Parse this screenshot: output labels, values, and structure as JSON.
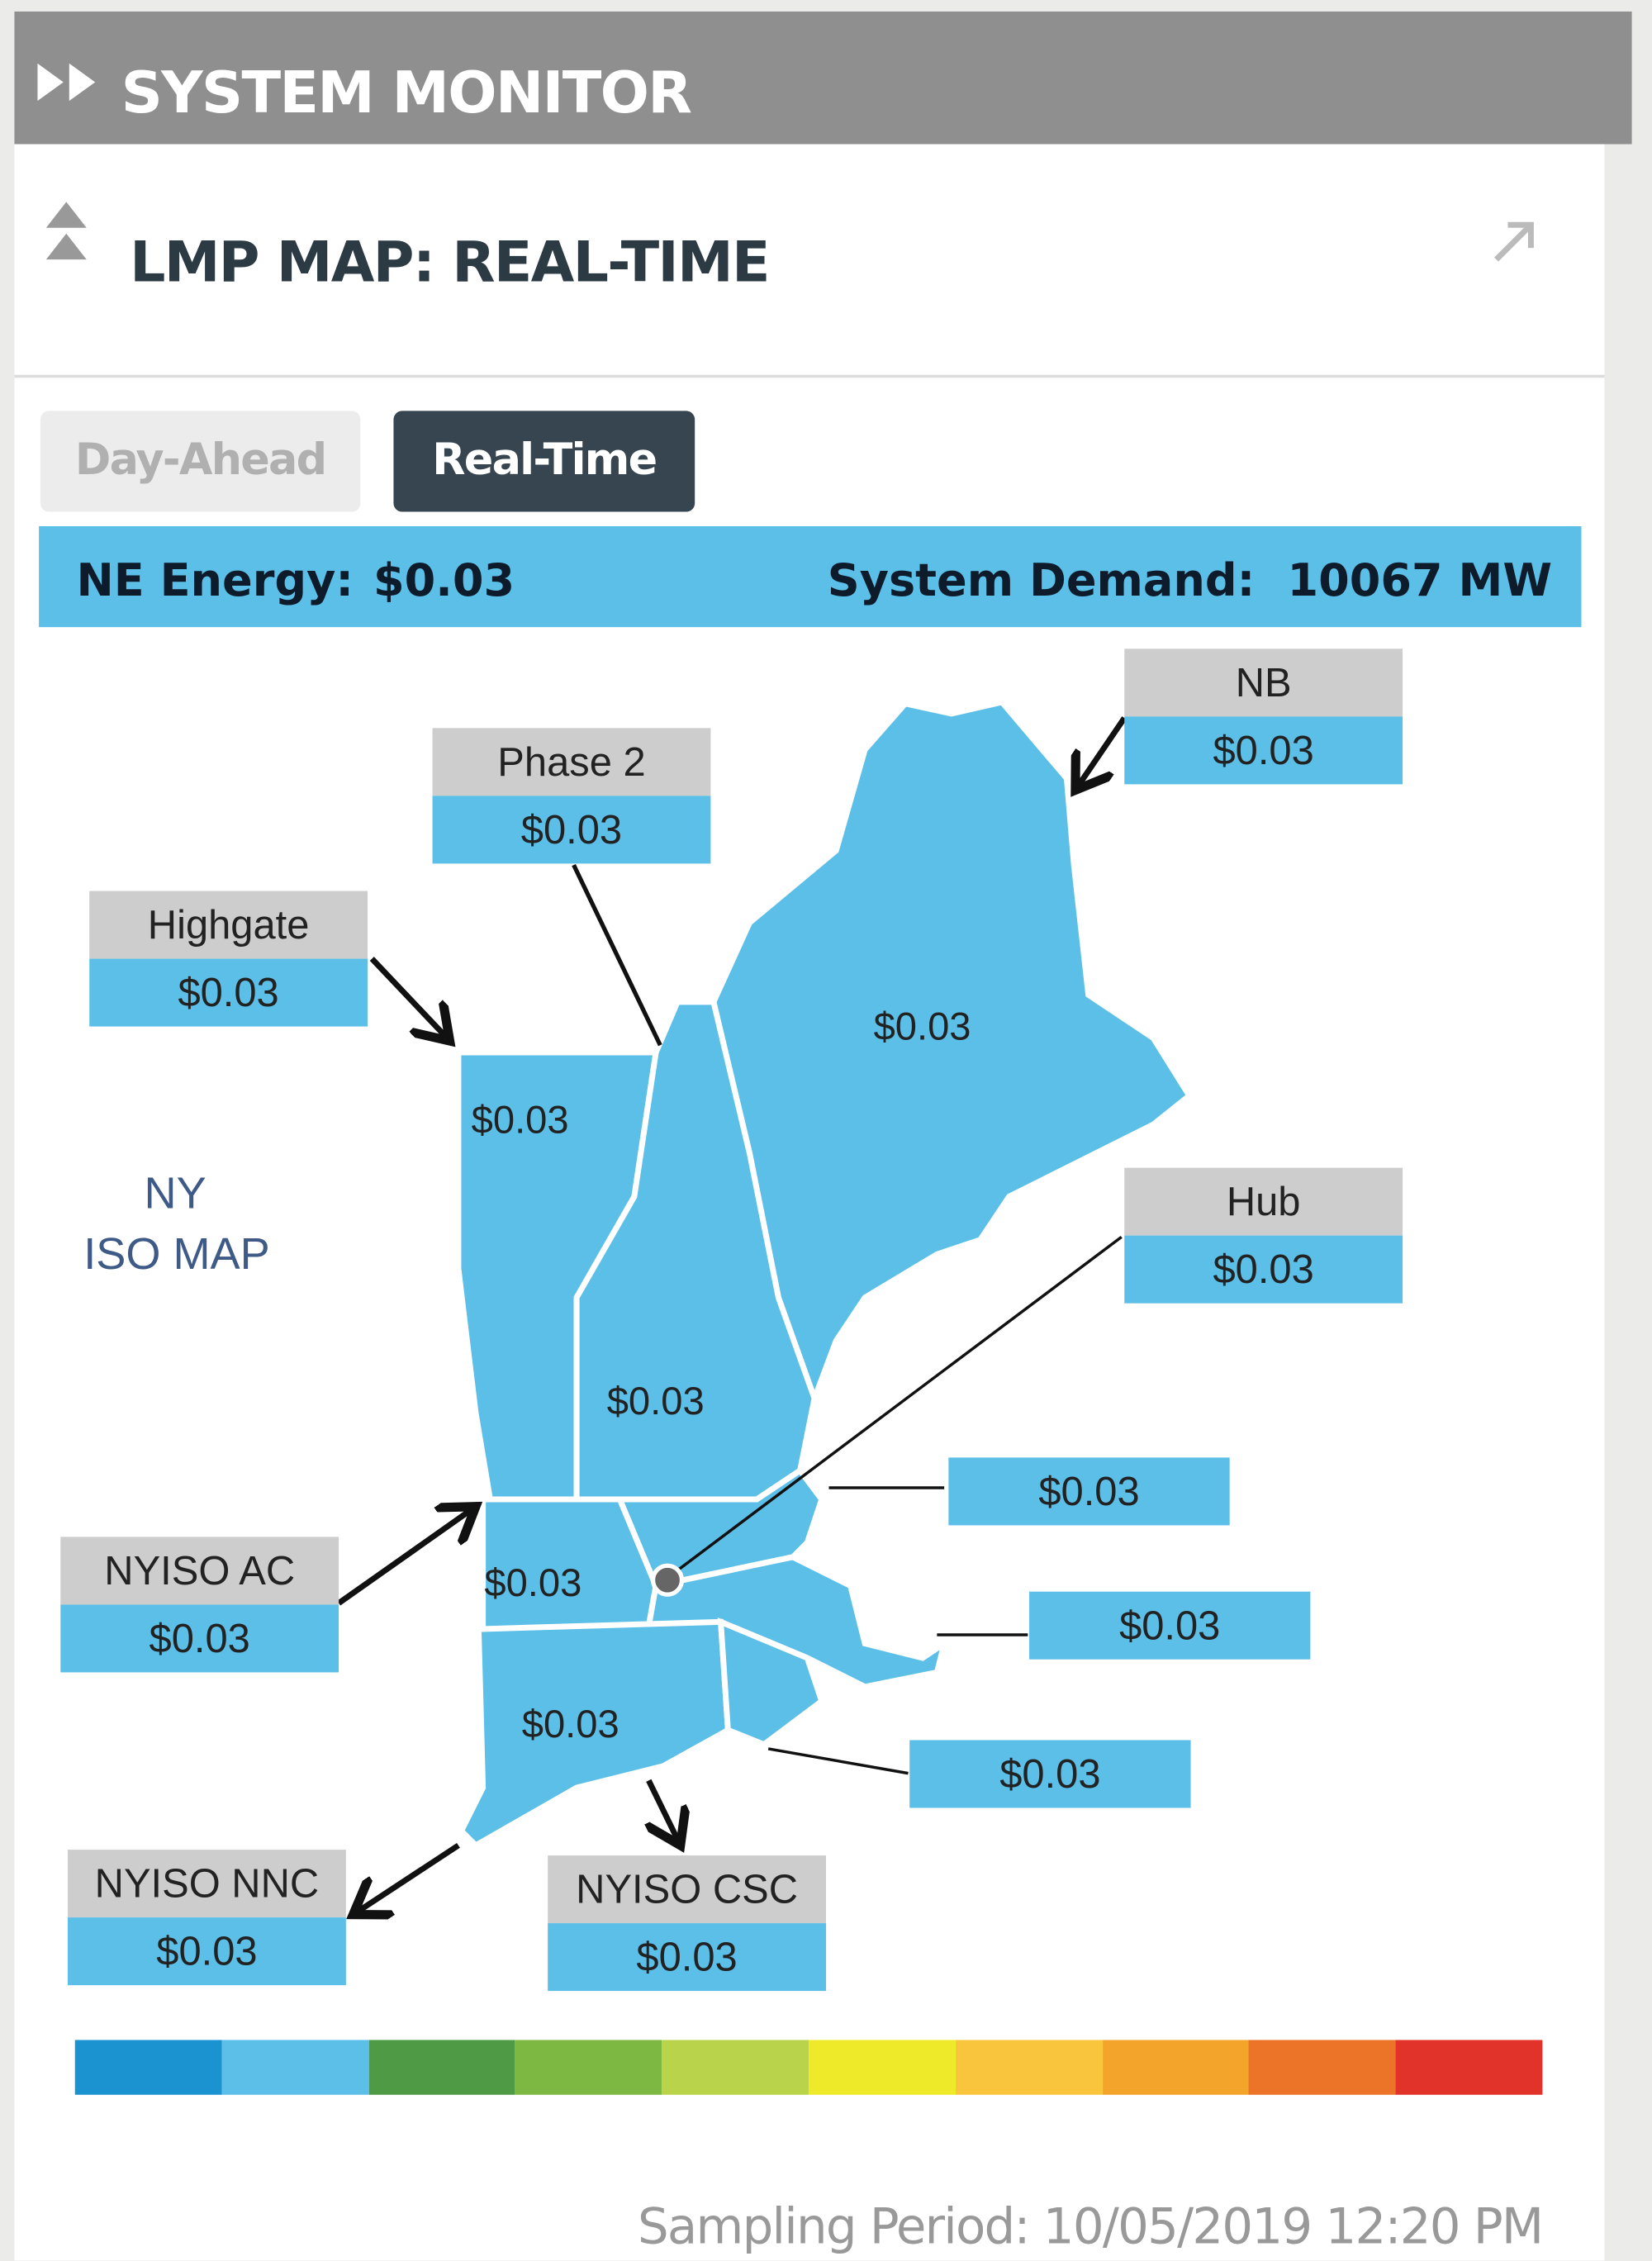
{
  "header": {
    "title": "SYSTEM MONITOR",
    "icon": "double-chevron-right-icon"
  },
  "widget": {
    "title": "LMP MAP: REAL-TIME",
    "collapse_icon": "collapse-up-icon",
    "expand_icon": "external-arrow-icon"
  },
  "tabs": [
    {
      "label": "Day-Ahead",
      "active": false
    },
    {
      "label": "Real-Time",
      "active": true
    }
  ],
  "summary": {
    "energy_label": "NE Energy:",
    "energy_value": "$0.03",
    "demand_label": "System Demand:",
    "demand_value": "10067 MW"
  },
  "map": {
    "ny_label_1": "NY",
    "ny_label_2": "ISO MAP",
    "interfaces": {
      "nb": {
        "name": "NB",
        "value": "$0.03"
      },
      "phase2": {
        "name": "Phase 2",
        "value": "$0.03"
      },
      "highgate": {
        "name": "Highgate",
        "value": "$0.03"
      },
      "hub": {
        "name": "Hub",
        "value": "$0.03"
      },
      "nyiso_ac": {
        "name": "NYISO AC",
        "value": "$0.03"
      },
      "nyiso_nnc": {
        "name": "NYISO NNC",
        "value": "$0.03"
      },
      "nyiso_csc": {
        "name": "NYISO CSC",
        "value": "$0.03"
      }
    },
    "zones": {
      "maine": "$0.03",
      "vermont": "$0.03",
      "new_hampshire": "$0.03",
      "wcma": "$0.03",
      "connecticut": "$0.03",
      "nema": "$0.03",
      "sema": "$0.03",
      "rhode_island": "$0.03"
    },
    "fill_color": "#5bbfe8"
  },
  "color_scale": [
    "#1b93d0",
    "#5bbfe8",
    "#4e9a45",
    "#7cb842",
    "#b9d44a",
    "#eeea2a",
    "#f8c53c",
    "#f3a42a",
    "#ec7428",
    "#e2332a"
  ],
  "footer": {
    "sampling": "Sampling Period: 10/05/2019 12:20 PM"
  }
}
